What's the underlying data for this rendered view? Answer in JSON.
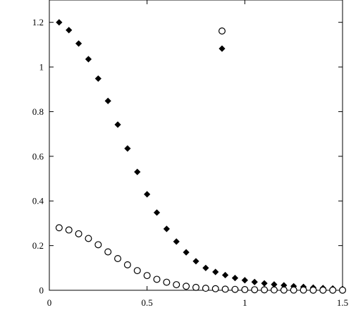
{
  "chart_data": {
    "type": "scatter",
    "xlim": [
      0,
      1.5
    ],
    "ylim": [
      0,
      1.3
    ],
    "xticks": [
      0,
      0.5,
      1,
      1.5
    ],
    "yticks": [
      0,
      0.2,
      0.4,
      0.6,
      0.8,
      1,
      1.2
    ],
    "xtick_labels": [
      "0",
      "0.5",
      "1",
      "1.5"
    ],
    "ytick_labels": [
      "0",
      "0.2",
      "0.4",
      "0.6",
      "0.8",
      "1",
      "1.2"
    ],
    "grid": false,
    "legend": "top-right",
    "series": [
      {
        "marker": "diamond-filled",
        "color": "#000000",
        "x": [
          0.05,
          0.1,
          0.15,
          0.2,
          0.25,
          0.3,
          0.35,
          0.4,
          0.45,
          0.5,
          0.55,
          0.6,
          0.65,
          0.7,
          0.75,
          0.8,
          0.85,
          0.9,
          0.95,
          1.0,
          1.05,
          1.1,
          1.15,
          1.2,
          1.25,
          1.3,
          1.35,
          1.4,
          1.45,
          1.5
        ],
        "y": [
          1.2,
          1.165,
          1.105,
          1.035,
          0.948,
          0.848,
          0.742,
          0.635,
          0.53,
          0.43,
          0.348,
          0.275,
          0.218,
          0.17,
          0.13,
          0.1,
          0.082,
          0.068,
          0.055,
          0.045,
          0.037,
          0.031,
          0.026,
          0.022,
          0.018,
          0.015,
          0.012,
          0.01,
          0.008,
          0.006
        ]
      },
      {
        "marker": "circle-open",
        "color": "#000000",
        "x": [
          0.05,
          0.1,
          0.15,
          0.2,
          0.25,
          0.3,
          0.35,
          0.4,
          0.45,
          0.5,
          0.55,
          0.6,
          0.65,
          0.7,
          0.75,
          0.8,
          0.85,
          0.9,
          0.95,
          1.0,
          1.05,
          1.1,
          1.15,
          1.2,
          1.25,
          1.3,
          1.35,
          1.4,
          1.45,
          1.5
        ],
        "y": [
          0.28,
          0.27,
          0.253,
          0.232,
          0.204,
          0.172,
          0.142,
          0.114,
          0.088,
          0.066,
          0.049,
          0.036,
          0.025,
          0.018,
          0.013,
          0.009,
          0.007,
          0.005,
          0.004,
          0.003,
          0.0025,
          0.002,
          0.0015,
          0.001,
          0.001,
          0.001,
          0.0005,
          0.0005,
          0.0005,
          0.0005
        ]
      }
    ]
  }
}
